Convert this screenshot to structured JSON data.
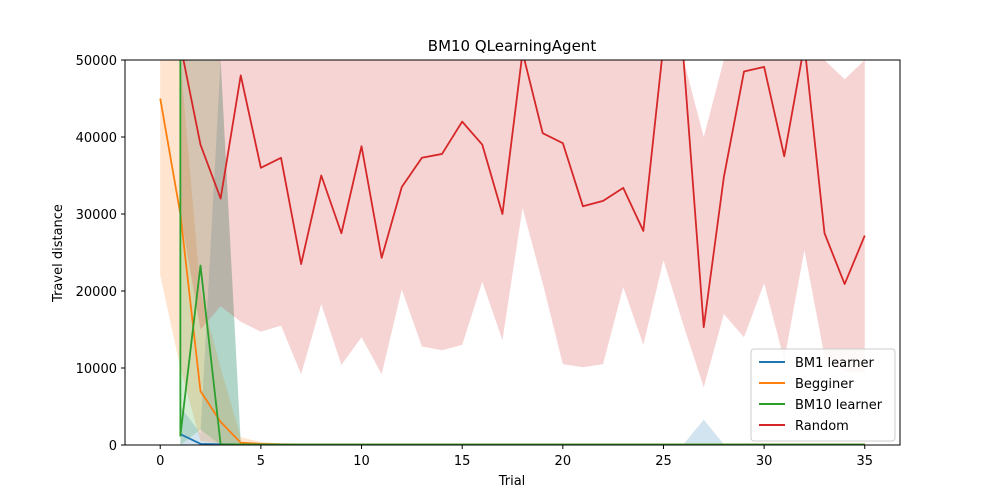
{
  "chart_data": {
    "type": "line",
    "title": "BM10  QLearningAgent",
    "xlabel": "Trial",
    "ylabel": "Travel distance",
    "xlim": [
      -1.75,
      36.75
    ],
    "ylim": [
      0,
      50000
    ],
    "xticks": [
      0,
      5,
      10,
      15,
      20,
      25,
      30,
      35
    ],
    "yticks": [
      0,
      10000,
      20000,
      30000,
      40000,
      50000
    ],
    "legend_position": "lower-right",
    "grid": false,
    "series": [
      {
        "name": "BM1 learner",
        "color": "#1f77b4",
        "x": [
          1,
          2,
          3,
          4,
          5,
          6,
          7,
          8,
          9,
          10,
          11,
          12,
          13,
          14,
          15,
          16,
          17,
          18,
          19,
          20,
          21,
          22,
          23,
          24,
          25,
          26,
          27,
          28,
          29,
          30,
          31,
          32,
          33,
          34,
          35
        ],
        "values": [
          1400,
          150,
          100,
          80,
          60,
          50,
          50,
          50,
          50,
          50,
          50,
          50,
          50,
          50,
          50,
          50,
          50,
          50,
          50,
          50,
          50,
          50,
          50,
          50,
          50,
          50,
          50,
          50,
          50,
          50,
          50,
          50,
          50,
          50,
          50
        ],
        "band_low": [
          0,
          0,
          0,
          0,
          0,
          0,
          0,
          0,
          0,
          0,
          0,
          0,
          0,
          0,
          0,
          0,
          0,
          0,
          0,
          0,
          0,
          0,
          0,
          0,
          0,
          0,
          0,
          0,
          0,
          0,
          0,
          0,
          0,
          0,
          0
        ],
        "band_high": [
          5000,
          1500,
          50000,
          300,
          200,
          100,
          100,
          100,
          100,
          100,
          100,
          100,
          100,
          100,
          100,
          100,
          100,
          100,
          100,
          100,
          100,
          100,
          100,
          100,
          100,
          100,
          3300,
          100,
          100,
          100,
          100,
          100,
          100,
          100,
          100
        ]
      },
      {
        "name": "Begginer",
        "color": "#ff7f0e",
        "x": [
          0,
          1,
          2,
          3,
          4,
          5,
          6,
          7,
          8,
          9,
          10,
          11,
          12,
          13,
          14,
          15,
          16,
          17,
          18,
          19,
          20,
          21,
          22,
          23,
          24,
          25,
          26,
          27,
          28,
          29,
          30,
          31,
          32,
          33,
          34,
          35
        ],
        "values": [
          45000,
          30000,
          7000,
          3000,
          300,
          150,
          100,
          80,
          80,
          80,
          80,
          80,
          80,
          80,
          80,
          80,
          80,
          80,
          80,
          80,
          80,
          80,
          80,
          80,
          80,
          80,
          80,
          80,
          80,
          80,
          80,
          80,
          80,
          80,
          80,
          80
        ],
        "band_low": [
          22000,
          10000,
          500,
          200,
          0,
          0,
          0,
          0,
          0,
          0,
          0,
          0,
          0,
          0,
          0,
          0,
          0,
          0,
          0,
          0,
          0,
          0,
          0,
          0,
          0,
          0,
          0,
          0,
          0,
          0,
          0,
          0,
          0,
          0,
          0,
          0
        ],
        "band_high": [
          50000,
          50000,
          20000,
          10000,
          1000,
          400,
          200,
          150,
          150,
          150,
          150,
          150,
          150,
          150,
          150,
          150,
          150,
          150,
          150,
          150,
          150,
          150,
          150,
          150,
          150,
          150,
          150,
          150,
          150,
          150,
          150,
          150,
          150,
          150,
          150,
          150
        ]
      },
      {
        "name": "BM10 learner",
        "color": "#2ca02c",
        "x": [
          1,
          1,
          2,
          3,
          4,
          5,
          6,
          7,
          8,
          9,
          10,
          11,
          12,
          13,
          14,
          15,
          16,
          17,
          18,
          19,
          20,
          21,
          22,
          23,
          24,
          25,
          26,
          27,
          28,
          29,
          30,
          31,
          32,
          33,
          34,
          35
        ],
        "values": [
          50000,
          1200,
          23300,
          100,
          80,
          60,
          60,
          60,
          60,
          60,
          60,
          60,
          60,
          60,
          60,
          60,
          60,
          60,
          60,
          60,
          60,
          60,
          60,
          60,
          60,
          60,
          60,
          60,
          60,
          60,
          60,
          60,
          60,
          60,
          60,
          60
        ],
        "band_low": [
          0,
          0,
          2000,
          0,
          0,
          0,
          0,
          0,
          0,
          0,
          0,
          0,
          0,
          0,
          0,
          0,
          0,
          0,
          0,
          0,
          0,
          0,
          0,
          0,
          0,
          0,
          0,
          0,
          0,
          0,
          0,
          0,
          0,
          0,
          0,
          0
        ],
        "band_high": [
          50000,
          50000,
          50000,
          50000,
          300,
          200,
          150,
          150,
          150,
          150,
          150,
          150,
          150,
          150,
          150,
          150,
          150,
          150,
          150,
          150,
          150,
          150,
          150,
          150,
          150,
          150,
          150,
          150,
          150,
          150,
          150,
          150,
          150,
          150,
          150,
          150
        ]
      },
      {
        "name": "Random",
        "color": "#d62728",
        "x": [
          1,
          2,
          3,
          4,
          5,
          6,
          7,
          8,
          9,
          10,
          11,
          12,
          13,
          14,
          15,
          16,
          17,
          18,
          19,
          20,
          21,
          22,
          23,
          24,
          25,
          26,
          27,
          28,
          29,
          30,
          31,
          32,
          33,
          34,
          35
        ],
        "values": [
          52000,
          39000,
          32000,
          48000,
          36000,
          37300,
          23500,
          35000,
          27500,
          38800,
          24300,
          33500,
          37300,
          37800,
          42000,
          39000,
          30000,
          51000,
          40500,
          39200,
          31000,
          31700,
          33400,
          27800,
          52000,
          50000,
          15300,
          34800,
          48500,
          49100,
          37500,
          52000,
          27500,
          20900,
          27200
        ],
        "band_low": [
          30000,
          15000,
          18000,
          16000,
          14700,
          15500,
          9200,
          18300,
          10400,
          14000,
          9200,
          20200,
          12800,
          12300,
          13000,
          21200,
          13600,
          30800,
          21000,
          10500,
          10100,
          10500,
          20500,
          13000,
          24000,
          15500,
          7500,
          17000,
          14000,
          21000,
          11000,
          25300,
          11500,
          9500,
          9500
        ],
        "band_high": [
          50000,
          50000,
          50000,
          50000,
          50000,
          50000,
          50000,
          50000,
          50000,
          50000,
          50000,
          50000,
          50000,
          50000,
          50000,
          50000,
          50000,
          50000,
          50000,
          50000,
          50000,
          50000,
          50000,
          50000,
          50000,
          50000,
          40000,
          50000,
          50000,
          50000,
          50000,
          50000,
          50000,
          47500,
          50000
        ]
      }
    ]
  }
}
